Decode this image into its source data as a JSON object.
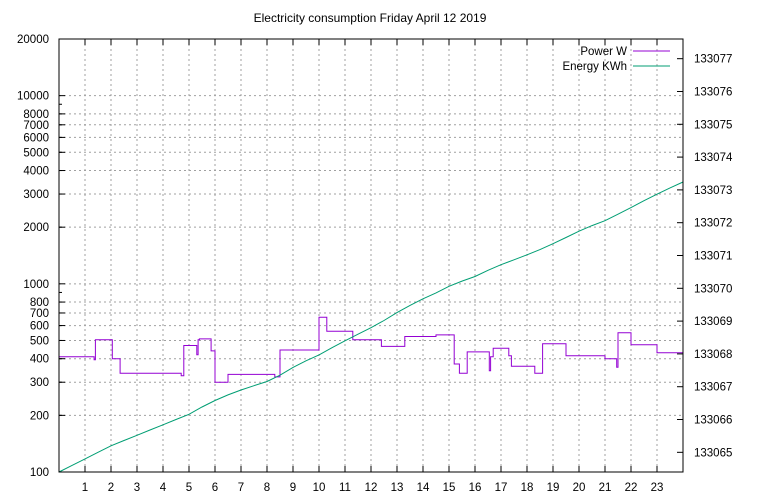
{
  "chart_data": {
    "type": "line",
    "title": "Electricity consumption Friday April 12 2019",
    "xlabel": "",
    "ylabel": "",
    "y2label": "",
    "xlim": [
      0,
      24
    ],
    "ylim": [
      100,
      20000
    ],
    "yscale": "log",
    "y2lim": [
      133064.4,
      133077.6
    ],
    "x_ticks": [
      "1",
      "2",
      "3",
      "4",
      "5",
      "6",
      "7",
      "8",
      "9",
      "10",
      "11",
      "12",
      "13",
      "14",
      "15",
      "16",
      "17",
      "18",
      "19",
      "20",
      "21",
      "22",
      "23"
    ],
    "y_ticks": [
      "100",
      "200",
      "300",
      "400",
      "500",
      "600",
      "700",
      "800",
      "1000",
      "2000",
      "3000",
      "4000",
      "5000",
      "6000",
      "7000",
      "8000",
      "10000",
      "20000"
    ],
    "y2_ticks": [
      "133065",
      "133066",
      "133067",
      "133068",
      "133069",
      "133070",
      "133071",
      "133072",
      "133073",
      "133074",
      "133075",
      "133076",
      "133077"
    ],
    "grid": true,
    "legend_position": "top-right",
    "series": [
      {
        "name": "Power W",
        "axis": "y",
        "color": "#9400d3",
        "style": "steps",
        "x": [
          0,
          1.2,
          1.35,
          1.4,
          2.0,
          2.05,
          2.15,
          2.35,
          2.4,
          3.5,
          4.0,
          4.7,
          4.8,
          5.2,
          5.3,
          5.35,
          5.4,
          5.8,
          5.85,
          6.0,
          6.1,
          6.4,
          6.5,
          7.3,
          8.0,
          8.3,
          8.5,
          9.0,
          10.0,
          10.1,
          10.3,
          10.4,
          11.2,
          11.3,
          12.0,
          12.3,
          12.4,
          13.0,
          13.3,
          13.4,
          14.0,
          14.5,
          14.6,
          15.2,
          15.4,
          15.7,
          16.0,
          16.5,
          16.55,
          16.6,
          16.7,
          17.0,
          17.3,
          17.4,
          18.0,
          18.3,
          18.6,
          19.0,
          19.3,
          19.5,
          20.0,
          20.5,
          21.0,
          21.4,
          21.45,
          21.5,
          21.8,
          22.0,
          22.8,
          23.0,
          24.0
        ],
        "values": [
          410,
          410,
          395,
          505,
          505,
          400,
          400,
          335,
          335,
          335,
          335,
          325,
          470,
          470,
          420,
          505,
          510,
          510,
          440,
          300,
          300,
          300,
          330,
          330,
          330,
          320,
          445,
          445,
          665,
          665,
          560,
          560,
          560,
          505,
          505,
          505,
          465,
          465,
          525,
          525,
          525,
          535,
          535,
          375,
          335,
          435,
          435,
          435,
          345,
          410,
          455,
          455,
          415,
          365,
          365,
          335,
          480,
          480,
          480,
          415,
          415,
          415,
          400,
          400,
          360,
          550,
          550,
          475,
          475,
          430,
          430
        ]
      },
      {
        "name": "Energy KWh",
        "axis": "y2",
        "color": "#009e73",
        "style": "lines",
        "x": [
          0,
          0.5,
          1,
          1.5,
          2,
          2.5,
          3,
          3.5,
          4,
          4.5,
          5,
          5.5,
          6,
          6.5,
          7,
          7.5,
          8,
          8.5,
          9,
          9.5,
          10,
          10.5,
          11,
          11.5,
          12,
          12.5,
          13,
          13.5,
          14,
          14.5,
          15,
          15.5,
          16,
          16.5,
          17,
          17.5,
          18,
          18.5,
          19,
          19.5,
          20,
          20.5,
          21,
          21.5,
          22,
          22.5,
          23,
          23.5,
          24
        ],
        "values": [
          133064.4,
          133064.6,
          133064.8,
          133065.0,
          133065.2,
          133065.36,
          133065.52,
          133065.68,
          133065.84,
          133066.0,
          133066.16,
          133066.38,
          133066.58,
          133066.75,
          133066.9,
          133067.03,
          133067.16,
          133067.35,
          133067.59,
          133067.79,
          133067.97,
          133068.19,
          133068.4,
          133068.6,
          133068.8,
          133069.02,
          133069.26,
          133069.48,
          133069.68,
          133069.86,
          133070.06,
          133070.22,
          133070.36,
          133070.55,
          133070.72,
          133070.87,
          133071.02,
          133071.18,
          133071.36,
          133071.55,
          133071.74,
          133071.91,
          133072.06,
          133072.26,
          133072.46,
          133072.67,
          133072.87,
          133073.06,
          133073.24
        ]
      }
    ]
  }
}
